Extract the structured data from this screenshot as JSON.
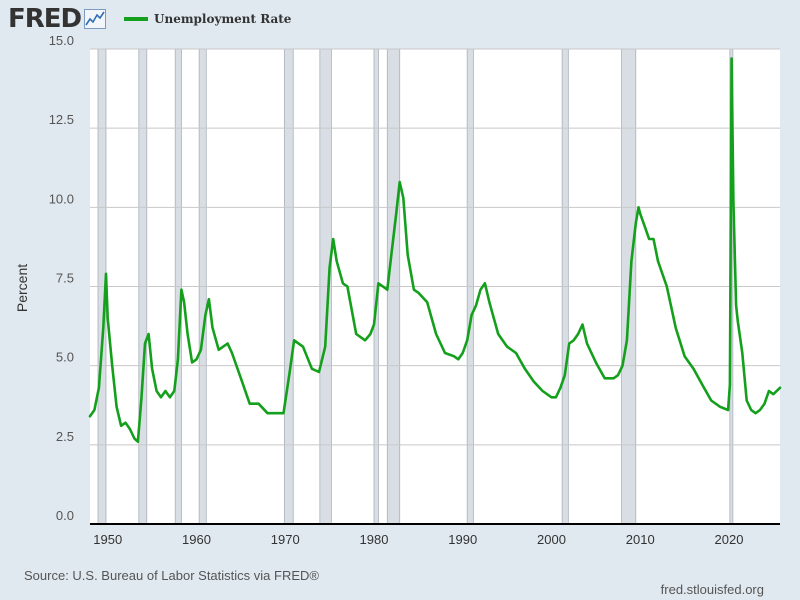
{
  "header": {
    "logo_text": "FRED",
    "logo_icon": "line-chart-icon",
    "legend_label": "Unemployment Rate",
    "series_color": "#14a01c"
  },
  "footer": {
    "source": "Source: U.S. Bureau of Labor Statistics via FRED®",
    "url": "fred.stlouisfed.org"
  },
  "chart_data": {
    "type": "line",
    "title": "Unemployment Rate",
    "xlabel": "",
    "ylabel": "Percent",
    "xlim": [
      1948,
      2025.75
    ],
    "ylim": [
      0,
      15
    ],
    "x_ticks": [
      1950,
      1960,
      1970,
      1980,
      1990,
      2000,
      2010,
      2020
    ],
    "y_ticks": [
      "0.0",
      "2.5",
      "5.0",
      "7.5",
      "10.0",
      "12.5",
      "15.0"
    ],
    "grid": true,
    "recessions": [
      [
        1948.9,
        1949.8
      ],
      [
        1953.5,
        1954.4
      ],
      [
        1957.6,
        1958.3
      ],
      [
        1960.3,
        1961.1
      ],
      [
        1969.9,
        1970.9
      ],
      [
        1973.9,
        1975.2
      ],
      [
        1980.0,
        1980.5
      ],
      [
        1981.5,
        1982.9
      ],
      [
        1990.5,
        1991.2
      ],
      [
        2001.2,
        2001.9
      ],
      [
        2007.9,
        2009.5
      ],
      [
        2020.1,
        2020.3
      ]
    ],
    "series": [
      {
        "name": "Unemployment Rate",
        "x": [
          1948.0,
          1948.5,
          1949.0,
          1949.5,
          1949.8,
          1950.0,
          1950.5,
          1951.0,
          1951.5,
          1952.0,
          1952.5,
          1953.0,
          1953.4,
          1953.8,
          1954.2,
          1954.6,
          1955.0,
          1955.5,
          1956.0,
          1956.5,
          1957.0,
          1957.5,
          1957.9,
          1958.3,
          1958.6,
          1959.0,
          1959.5,
          1960.0,
          1960.5,
          1961.0,
          1961.4,
          1961.8,
          1962.5,
          1963.0,
          1963.5,
          1964.0,
          1965.0,
          1966.0,
          1967.0,
          1968.0,
          1969.0,
          1969.8,
          1970.5,
          1971.0,
          1972.0,
          1973.0,
          1973.8,
          1974.5,
          1975.0,
          1975.4,
          1975.8,
          1976.5,
          1977.0,
          1978.0,
          1979.0,
          1979.6,
          1980.0,
          1980.5,
          1981.0,
          1981.5,
          1982.0,
          1982.5,
          1982.9,
          1983.3,
          1983.8,
          1984.5,
          1985.0,
          1986.0,
          1987.0,
          1988.0,
          1989.0,
          1989.5,
          1990.0,
          1990.5,
          1991.0,
          1991.5,
          1992.0,
          1992.5,
          1993.0,
          1994.0,
          1995.0,
          1996.0,
          1997.0,
          1998.0,
          1999.0,
          2000.0,
          2000.5,
          2001.0,
          2001.5,
          2002.0,
          2002.5,
          2003.0,
          2003.5,
          2004.0,
          2005.0,
          2006.0,
          2007.0,
          2007.5,
          2008.0,
          2008.5,
          2009.0,
          2009.5,
          2009.8,
          2010.0,
          2010.5,
          2011.0,
          2011.5,
          2012.0,
          2013.0,
          2014.0,
          2015.0,
          2016.0,
          2017.0,
          2018.0,
          2019.0,
          2019.9,
          2020.1,
          2020.3,
          2020.5,
          2020.8,
          2021.0,
          2021.5,
          2022.0,
          2022.5,
          2023.0,
          2023.5,
          2024.0,
          2024.5,
          2025.0,
          2025.75
        ],
        "values": [
          3.4,
          3.6,
          4.3,
          6.2,
          7.9,
          6.5,
          5.0,
          3.7,
          3.1,
          3.2,
          3.0,
          2.7,
          2.6,
          4.0,
          5.7,
          6.0,
          4.9,
          4.2,
          4.0,
          4.2,
          4.0,
          4.2,
          5.2,
          7.4,
          7.0,
          6.0,
          5.1,
          5.2,
          5.5,
          6.6,
          7.1,
          6.2,
          5.5,
          5.6,
          5.7,
          5.4,
          4.6,
          3.8,
          3.8,
          3.5,
          3.5,
          3.5,
          4.8,
          5.8,
          5.6,
          4.9,
          4.8,
          5.6,
          8.1,
          9.0,
          8.3,
          7.6,
          7.5,
          6.0,
          5.8,
          6.0,
          6.3,
          7.6,
          7.5,
          7.4,
          8.6,
          9.8,
          10.8,
          10.3,
          8.5,
          7.4,
          7.3,
          7.0,
          6.0,
          5.4,
          5.3,
          5.2,
          5.4,
          5.8,
          6.6,
          6.9,
          7.4,
          7.6,
          7.0,
          6.0,
          5.6,
          5.4,
          4.9,
          4.5,
          4.2,
          4.0,
          4.0,
          4.3,
          4.7,
          5.7,
          5.8,
          6.0,
          6.3,
          5.7,
          5.1,
          4.6,
          4.6,
          4.7,
          5.0,
          5.8,
          8.3,
          9.5,
          10.0,
          9.8,
          9.4,
          9.0,
          9.0,
          8.3,
          7.5,
          6.2,
          5.3,
          4.9,
          4.4,
          3.9,
          3.7,
          3.6,
          4.4,
          14.7,
          10.2,
          6.9,
          6.4,
          5.4,
          3.9,
          3.6,
          3.5,
          3.6,
          3.8,
          4.2,
          4.1,
          4.3
        ]
      }
    ]
  }
}
